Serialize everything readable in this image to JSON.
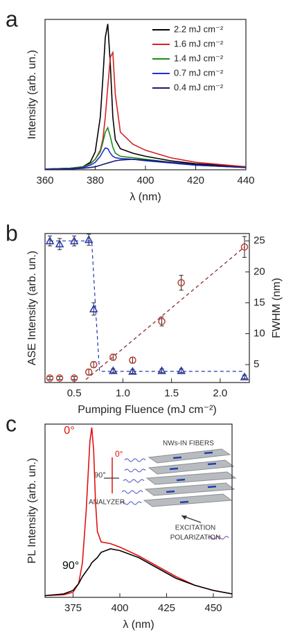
{
  "chart_data": [
    {
      "type": "line",
      "panel": "a",
      "x_label": "λ (nm)",
      "y_label": "Intensity (arb. un.)",
      "xlim": [
        360,
        440
      ],
      "xticks": [
        360,
        380,
        400,
        420,
        440
      ],
      "ylim": [
        0,
        1
      ],
      "legend": "upper right",
      "x": [
        360,
        370,
        375,
        378,
        380,
        382,
        383,
        384,
        385,
        386,
        387,
        388,
        390,
        395,
        400,
        410,
        420,
        440
      ],
      "series": [
        {
          "name": "2.2 mJ cm⁻²",
          "color": "#000000",
          "values": [
            0.005,
            0.01,
            0.02,
            0.05,
            0.12,
            0.35,
            0.6,
            0.88,
            0.97,
            0.7,
            0.35,
            0.2,
            0.14,
            0.11,
            0.09,
            0.06,
            0.04,
            0.02
          ]
        },
        {
          "name": "1.6 mJ cm⁻²",
          "color": "#d62020",
          "values": [
            0.005,
            0.01,
            0.02,
            0.04,
            0.07,
            0.13,
            0.2,
            0.35,
            0.55,
            0.75,
            0.78,
            0.5,
            0.25,
            0.17,
            0.13,
            0.08,
            0.05,
            0.02
          ]
        },
        {
          "name": "1.4 mJ cm⁻²",
          "color": "#1a8a1a",
          "values": [
            0.005,
            0.01,
            0.02,
            0.04,
            0.07,
            0.12,
            0.18,
            0.25,
            0.28,
            0.22,
            0.15,
            0.11,
            0.09,
            0.08,
            0.07,
            0.05,
            0.03,
            0.015
          ]
        },
        {
          "name": "0.7 mJ cm⁻²",
          "color": "#1f2fd0",
          "values": [
            0.003,
            0.008,
            0.015,
            0.03,
            0.05,
            0.09,
            0.12,
            0.145,
            0.14,
            0.11,
            0.09,
            0.08,
            0.075,
            0.07,
            0.06,
            0.045,
            0.03,
            0.015
          ]
        },
        {
          "name": "0.4 mJ cm⁻²",
          "color": "#1a1a6e",
          "values": [
            0.002,
            0.005,
            0.01,
            0.015,
            0.02,
            0.03,
            0.035,
            0.04,
            0.045,
            0.05,
            0.055,
            0.06,
            0.065,
            0.07,
            0.065,
            0.05,
            0.035,
            0.015
          ]
        }
      ]
    },
    {
      "type": "scatter",
      "panel": "b",
      "x_label": "Pumping Fluence (mJ cm⁻²)",
      "y_label": "ASE Intensity (arb. un.)",
      "y2_label": "FWHM (nm)",
      "xlim": [
        0.2,
        2.3
      ],
      "xticks": [
        0.5,
        {
          "value": 1,
          "label": "1.0"
        },
        1.5,
        {
          "value": 2,
          "label": "2.0"
        }
      ],
      "ylim": [
        0,
        1
      ],
      "y2lim": [
        2.1,
        26.2
      ],
      "y2ticks": [
        5,
        10,
        15,
        20,
        25
      ],
      "series": [
        {
          "marker": "circle",
          "color": "#c0392b",
          "x": [
            0.25,
            0.35,
            0.5,
            0.65,
            0.7,
            0.9,
            1.1,
            1.4,
            1.6,
            2.25
          ],
          "values": [
            0.03,
            0.03,
            0.03,
            0.07,
            0.12,
            0.17,
            0.15,
            0.41,
            0.67,
            0.91
          ],
          "errors": [
            0.01,
            0.01,
            0.01,
            0.02,
            0.02,
            0.02,
            0.02,
            0.03,
            0.05,
            0.07
          ]
        },
        {
          "marker": "triangle",
          "color": "#2535b0",
          "axis": "y2",
          "x": [
            0.25,
            0.35,
            0.5,
            0.65,
            0.7,
            0.9,
            1.1,
            1.4,
            1.6,
            2.25
          ],
          "values": [
            25,
            24.5,
            25,
            25.2,
            14,
            4,
            3.9,
            4,
            4,
            3
          ],
          "errors": [
            0.8,
            0.9,
            0.8,
            0.9,
            1,
            0.3,
            0.3,
            0.3,
            0.3,
            0.3
          ]
        }
      ],
      "fits": [
        {
          "color": "#7a1f1f",
          "x": [
            0.62,
            2.25
          ],
          "values": [
            0.02,
            0.91
          ]
        },
        {
          "color": "#2535b0",
          "axis": "y2",
          "x": [
            0.25,
            0.68,
            0.72,
            0.76,
            2.25
          ],
          "values": [
            25,
            25,
            14,
            3.9,
            3.9
          ]
        }
      ]
    },
    {
      "type": "line",
      "panel": "c",
      "x_label": "λ (nm)",
      "y_label": "PL Intensity (arb. un.)",
      "xlim": [
        360,
        460
      ],
      "xticks": [
        375,
        400,
        425,
        450
      ],
      "ylim": [
        0,
        1
      ],
      "x": [
        360,
        370,
        375,
        378,
        380,
        382,
        384,
        385,
        386,
        387,
        388,
        390,
        395,
        400,
        410,
        420,
        430,
        440,
        450,
        460
      ],
      "series": [
        {
          "name": "0°",
          "color": "#e01010",
          "values": [
            0.01,
            0.015,
            0.03,
            0.08,
            0.2,
            0.5,
            0.9,
            0.98,
            0.85,
            0.55,
            0.38,
            0.32,
            0.31,
            0.29,
            0.24,
            0.18,
            0.12,
            0.07,
            0.04,
            0.02
          ]
        },
        {
          "name": "90°",
          "color": "#000000",
          "values": [
            0.01,
            0.02,
            0.04,
            0.08,
            0.12,
            0.15,
            0.18,
            0.2,
            0.21,
            0.22,
            0.23,
            0.26,
            0.28,
            0.27,
            0.23,
            0.17,
            0.11,
            0.07,
            0.04,
            0.02
          ]
        }
      ],
      "inset": {
        "title": "NWs-IN FIBERS",
        "angle_0": "0°",
        "angle_90": "90°",
        "analyzer": "ANALYZER",
        "excitation": "EXCITATION",
        "polarization": "POLARIZATION"
      }
    }
  ]
}
